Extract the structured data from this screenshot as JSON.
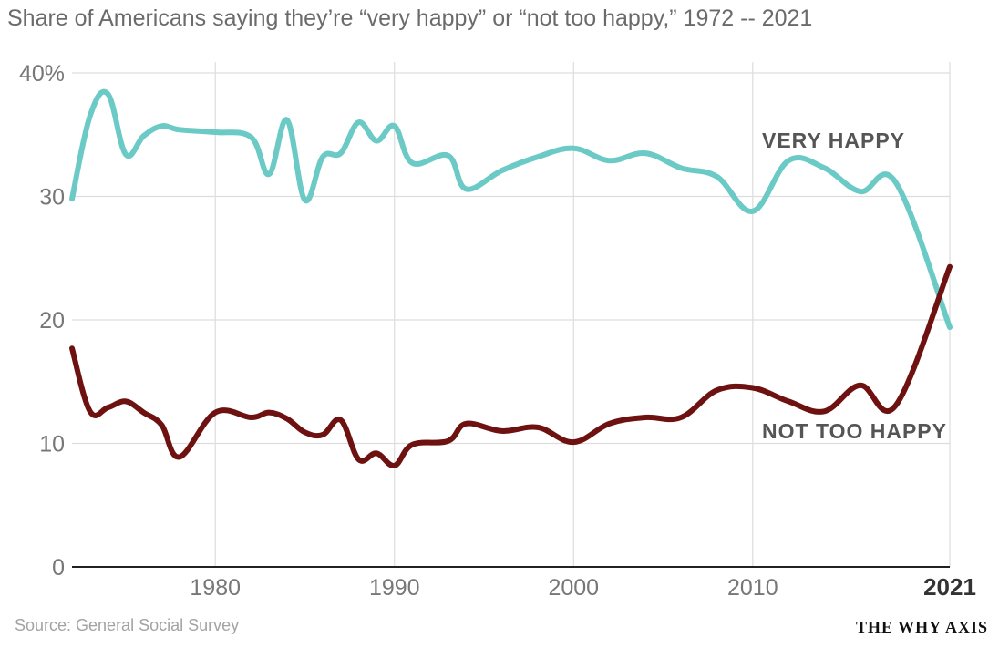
{
  "subtitle": "Share of Americans saying they’re “very happy” or “not too happy,” 1972 -- 2021",
  "source": "Source: General Social Survey",
  "brand": "THE WHY AXIS",
  "chart_data": {
    "type": "line",
    "title": "",
    "xlabel": "",
    "ylabel": "",
    "xlim": [
      1972,
      2021
    ],
    "ylim": [
      0,
      40
    ],
    "grid": true,
    "x_ticks": [
      {
        "value": 1980,
        "label": "1980",
        "bold": false
      },
      {
        "value": 1990,
        "label": "1990",
        "bold": false
      },
      {
        "value": 2000,
        "label": "2000",
        "bold": false
      },
      {
        "value": 2010,
        "label": "2010",
        "bold": false
      },
      {
        "value": 2021,
        "label": "2021",
        "bold": true
      }
    ],
    "y_ticks": [
      {
        "value": 0,
        "label": "0"
      },
      {
        "value": 10,
        "label": "10"
      },
      {
        "value": 20,
        "label": "20"
      },
      {
        "value": 30,
        "label": "30"
      },
      {
        "value": 40,
        "label": "40%"
      }
    ],
    "series": [
      {
        "name": "VERY HAPPY",
        "color": "#6ccac6",
        "label_color": "#555555",
        "points": [
          [
            1972,
            29.8
          ],
          [
            1973,
            36.5
          ],
          [
            1974,
            38.3
          ],
          [
            1975,
            33.4
          ],
          [
            1976,
            34.9
          ],
          [
            1977,
            35.7
          ],
          [
            1978,
            35.4
          ],
          [
            1980,
            35.2
          ],
          [
            1982,
            34.8
          ],
          [
            1983,
            31.8
          ],
          [
            1984,
            36.2
          ],
          [
            1985,
            29.7
          ],
          [
            1986,
            33.2
          ],
          [
            1987,
            33.5
          ],
          [
            1988,
            36.0
          ],
          [
            1989,
            34.5
          ],
          [
            1990,
            35.7
          ],
          [
            1991,
            32.7
          ],
          [
            1993,
            33.3
          ],
          [
            1994,
            30.6
          ],
          [
            1996,
            32.1
          ],
          [
            1998,
            33.2
          ],
          [
            2000,
            33.9
          ],
          [
            2002,
            32.9
          ],
          [
            2004,
            33.5
          ],
          [
            2006,
            32.3
          ],
          [
            2008,
            31.6
          ],
          [
            2010,
            28.8
          ],
          [
            2012,
            32.9
          ],
          [
            2014,
            32.3
          ],
          [
            2016,
            30.4
          ],
          [
            2018,
            31.1
          ],
          [
            2021,
            19.4
          ]
        ]
      },
      {
        "name": "NOT TOO HAPPY",
        "color": "#6e1111",
        "label_color": "#555555",
        "points": [
          [
            1972,
            17.7
          ],
          [
            1973,
            12.6
          ],
          [
            1974,
            12.9
          ],
          [
            1975,
            13.4
          ],
          [
            1976,
            12.5
          ],
          [
            1977,
            11.5
          ],
          [
            1978,
            8.9
          ],
          [
            1980,
            12.5
          ],
          [
            1982,
            12.1
          ],
          [
            1983,
            12.5
          ],
          [
            1984,
            12.0
          ],
          [
            1985,
            10.9
          ],
          [
            1986,
            10.7
          ],
          [
            1987,
            11.9
          ],
          [
            1988,
            8.7
          ],
          [
            1989,
            9.2
          ],
          [
            1990,
            8.2
          ],
          [
            1991,
            9.9
          ],
          [
            1993,
            10.2
          ],
          [
            1994,
            11.6
          ],
          [
            1996,
            11.0
          ],
          [
            1998,
            11.3
          ],
          [
            2000,
            10.1
          ],
          [
            2002,
            11.6
          ],
          [
            2004,
            12.1
          ],
          [
            2006,
            12.1
          ],
          [
            2008,
            14.3
          ],
          [
            2010,
            14.5
          ],
          [
            2012,
            13.4
          ],
          [
            2014,
            12.6
          ],
          [
            2016,
            14.7
          ],
          [
            2018,
            13.1
          ],
          [
            2021,
            24.3
          ]
        ]
      }
    ]
  }
}
